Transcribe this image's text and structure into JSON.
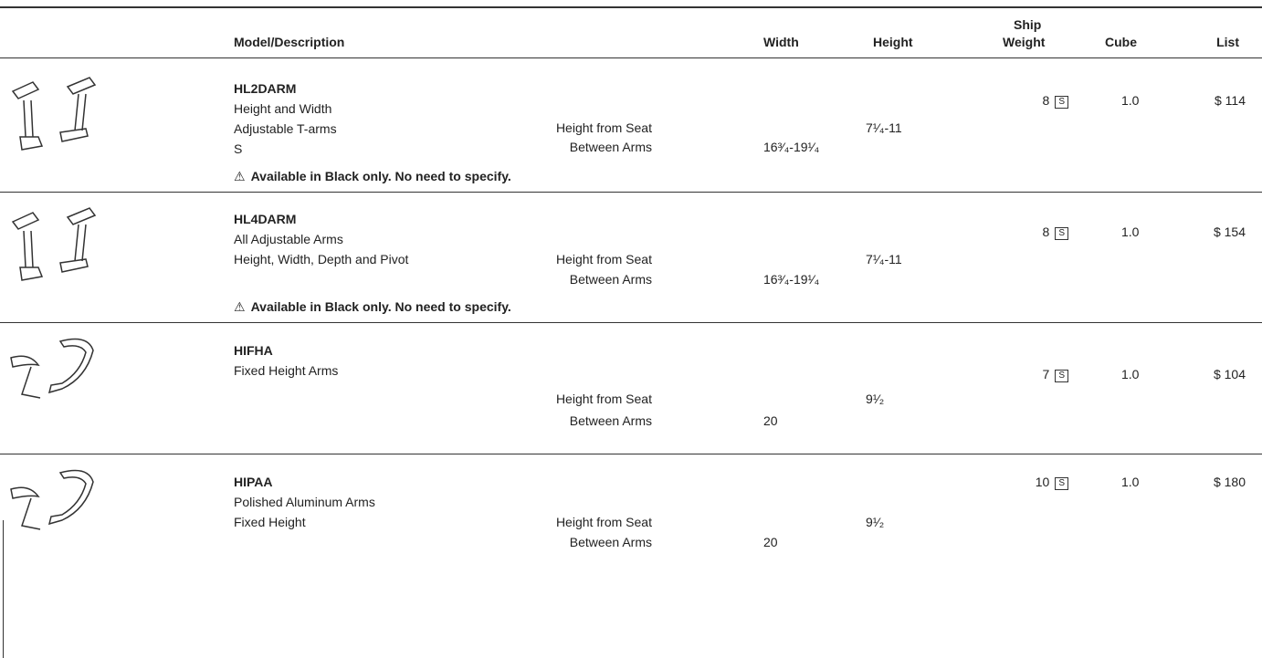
{
  "header": {
    "model": "Model/Description",
    "width": "Width",
    "height": "Height",
    "weight": [
      "Ship",
      "Weight"
    ],
    "cube": "Cube",
    "list": "List"
  },
  "rows": [
    {
      "model": "HL2DARM",
      "description": [
        "Height and Width",
        "Adjustable T-arms",
        "S"
      ],
      "height_label": "Height from Seat",
      "height": "7¹⁄₄-11",
      "width_label": "Between Arms",
      "width": "16³⁄₄-19¹⁄₄",
      "weight": "8",
      "weight_code": "S",
      "cube": "1.0",
      "list": "$ 114",
      "note": "Available in Black only. No need to specify."
    },
    {
      "model": "HL4DARM",
      "description": [
        "All Adjustable Arms",
        "Height, Width, Depth and Pivot"
      ],
      "height_label": "Height from Seat",
      "height": "7¹⁄₄-11",
      "width_label": "Between Arms",
      "width": "16³⁄₄-19¹⁄₄",
      "weight": "8",
      "weight_code": "S",
      "cube": "1.0",
      "list": "$ 154",
      "note": "Available in Black only. No need to specify."
    },
    {
      "model": "HIFHA",
      "description": [
        "Fixed Height Arms"
      ],
      "height_label": "Height from Seat",
      "height": "9¹⁄₂",
      "width_label": "Between Arms",
      "width": "20",
      "weight": "7",
      "weight_code": "S",
      "cube": "1.0",
      "list": "$ 104"
    },
    {
      "model": "HIPAA",
      "description": [
        "Polished Aluminum Arms",
        "Fixed Height"
      ],
      "height_label": "Height from Seat",
      "height": "9¹⁄₂",
      "width_label": "Between Arms",
      "width": "20",
      "weight": "10",
      "weight_code": "S",
      "cube": "1.0",
      "list": "$ 180"
    }
  ]
}
